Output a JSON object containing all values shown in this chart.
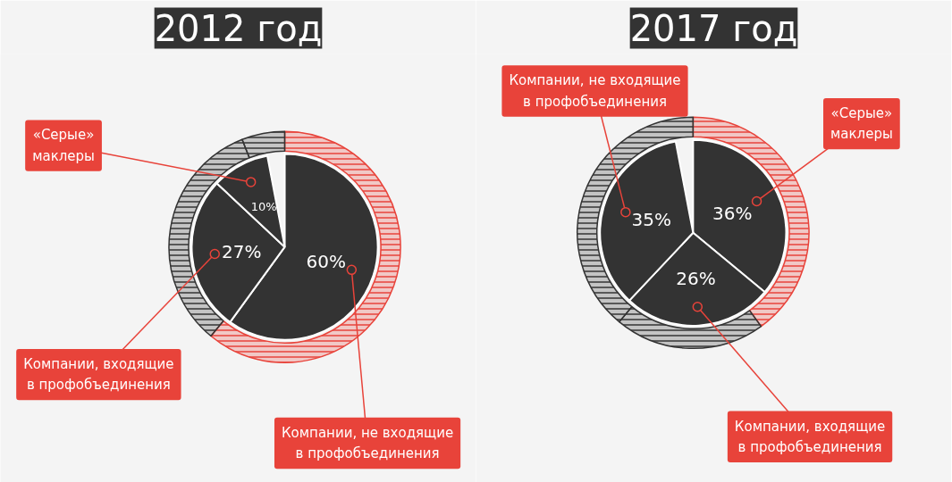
{
  "chart_data": [
    {
      "type": "pie",
      "title": "2012 год",
      "categories": [
        "Компании, не входящие\nв профобъединения",
        "Компании, входящие\nв профобъединения",
        "«Серые»\nмаклеры"
      ],
      "series": [
        {
          "values": [
            60,
            27,
            10
          ],
          "value_labels": [
            "60%",
            "27%",
            "10%"
          ],
          "colors": [
            "#333333",
            "#333333",
            "#333333"
          ]
        },
        {
          "values": [
            61,
            33,
            6
          ],
          "colors": [
            "#e8433a",
            "#333333",
            "#333333"
          ]
        }
      ]
    },
    {
      "type": "pie",
      "title": "2017 год",
      "categories": [
        "«Серые»\nмаклеры",
        "Компании, входящие\nв профобъединения",
        "Компании, не входящие\nв профобъединения"
      ],
      "series": [
        {
          "values": [
            36,
            26,
            35
          ],
          "value_labels": [
            "36%",
            "26%",
            "35%"
          ],
          "colors": [
            "#333333",
            "#333333",
            "#333333"
          ]
        },
        {
          "values": [
            40,
            21,
            39
          ],
          "colors": [
            "#e8433a",
            "#333333",
            "#333333"
          ]
        }
      ]
    }
  ]
}
